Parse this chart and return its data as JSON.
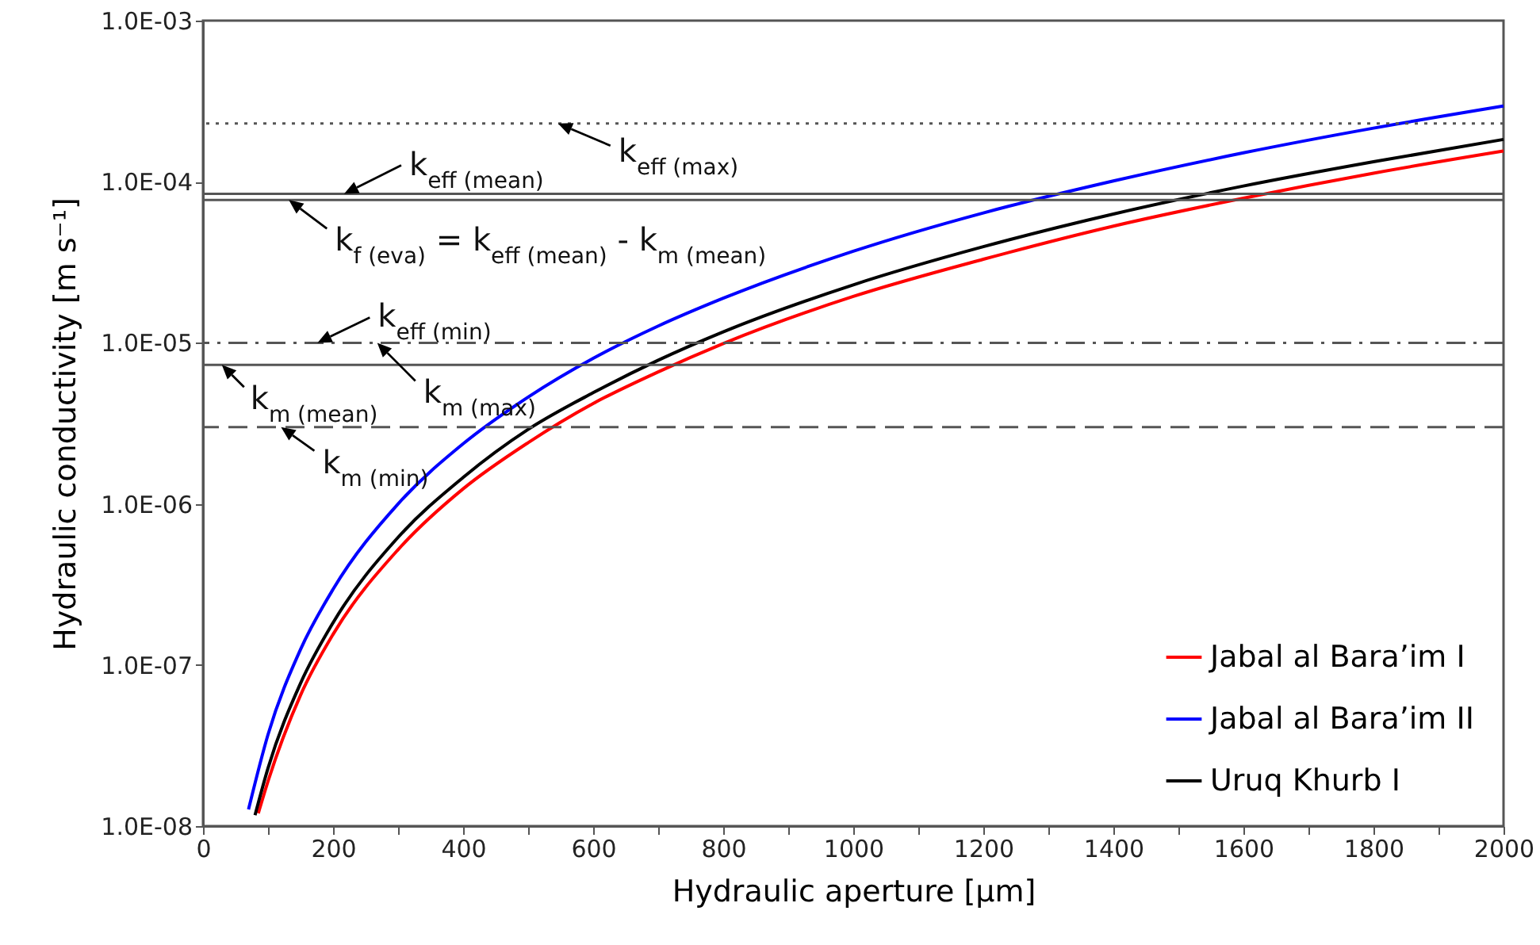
{
  "chart_data": {
    "type": "line",
    "xlabel": "Hydraulic aperture [µm]",
    "ylabel": "Hydraulic conductivity [m s⁻¹]",
    "xlim": [
      0,
      2000
    ],
    "ylim": [
      1e-08,
      0.001
    ],
    "log": "y",
    "grid": false,
    "legend": "bottom right",
    "marker": "none",
    "line_style": "solid",
    "xticks": [
      0,
      {
        "value": 100,
        "label": null
      },
      200,
      {
        "value": 300,
        "label": null
      },
      400,
      {
        "value": 500,
        "label": null
      },
      600,
      {
        "value": 700,
        "label": null
      },
      800,
      {
        "value": 900,
        "label": null
      },
      1000,
      {
        "value": 1100,
        "label": null
      },
      1200,
      {
        "value": 1300,
        "label": null
      },
      1400,
      {
        "value": 1500,
        "label": null
      },
      1600,
      {
        "value": 1700,
        "label": null
      },
      1800,
      {
        "value": 1900,
        "label": null
      },
      2000
    ],
    "yticks": [
      {
        "value": 1e-08,
        "label": "1.0E-08"
      },
      {
        "value": 1e-07,
        "label": "1.0E-07"
      },
      {
        "value": 1e-06,
        "label": "1.0E-06"
      },
      {
        "value": 1e-05,
        "label": "1.0E-05"
      },
      {
        "value": 0.0001,
        "label": "1.0E-04"
      },
      {
        "value": 0.001,
        "label": "1.0E-03"
      }
    ],
    "series": [
      {
        "name": "Jabal al Bara’im I",
        "color": "#ff0000",
        "x": [
          85,
          100,
          150,
          200,
          300,
          400,
          500,
          600,
          700,
          800,
          1000,
          1200,
          1400,
          1600,
          1800,
          2000
        ],
        "values": [
          1.2e-08,
          1.9e-08,
          6.5e-08,
          1.55e-07,
          5.2e-07,
          1.24e-06,
          2.4e-06,
          4.2e-06,
          6.6e-06,
          9.9e-06,
          1.94e-05,
          3.3e-05,
          5.3e-05,
          7.9e-05,
          0.000113,
          0.000155
        ]
      },
      {
        "name": "Jabal al Bara’im II",
        "color": "#0000ff",
        "x": [
          70,
          100,
          150,
          200,
          300,
          400,
          500,
          600,
          700,
          800,
          1000,
          1200,
          1400,
          1600,
          1800,
          2000
        ],
        "values": [
          1.27e-08,
          3.7e-08,
          1.25e-07,
          2.95e-07,
          1e-06,
          2.36e-06,
          4.6e-06,
          8e-06,
          1.27e-05,
          1.89e-05,
          3.7e-05,
          6.4e-05,
          0.000101,
          0.000151,
          0.000215,
          0.000295
        ]
      },
      {
        "name": "Uruq Khurb I",
        "color": "#000000",
        "x": [
          80,
          100,
          150,
          200,
          300,
          400,
          500,
          600,
          700,
          800,
          1000,
          1200,
          1400,
          1600,
          1800,
          2000
        ],
        "values": [
          1.17e-08,
          2.29e-08,
          7.7e-08,
          1.83e-07,
          6.2e-07,
          1.46e-06,
          2.9e-06,
          4.9e-06,
          7.8e-06,
          1.17e-05,
          2.29e-05,
          3.95e-05,
          6.3e-05,
          9.4e-05,
          0.000133,
          0.000183
        ]
      }
    ],
    "ref_lines": [
      {
        "axis": "y",
        "value": 0.00023,
        "color": "#555555",
        "line_style": "dotted"
      },
      {
        "axis": "y",
        "value": 8.4e-05,
        "color": "#555555",
        "line_style": "solid"
      },
      {
        "axis": "y",
        "value": 7.7e-05,
        "color": "#555555",
        "line_style": "solid"
      },
      {
        "axis": "y",
        "value": 1e-05,
        "color": "#555555",
        "line_style": "dashdot"
      },
      {
        "axis": "y",
        "value": 7.3e-06,
        "color": "#555555",
        "line_style": "solid"
      },
      {
        "axis": "y",
        "value": 3e-06,
        "color": "#555555",
        "line_style": "dashed"
      }
    ],
    "annotations": [
      {
        "text": "k$_{eff (max)}$",
        "x": 546,
        "y": 0.00023
      },
      {
        "text": "k$_{eff (mean)}$",
        "x": 217,
        "y": 8.4e-05
      },
      {
        "text": "k$_{f (eva)}$ = k$_{eff (mean)}$ - k$_{m (mean)}$",
        "x": 132,
        "y": 7.7e-05
      },
      {
        "text": "k$_{eff (min)}$",
        "x": 176,
        "y": 1e-05
      },
      {
        "text": "k$_{m (max)}$",
        "x": 268,
        "y": 1e-05
      },
      {
        "text": "k$_{m (mean)}$",
        "x": 29,
        "y": 7.3e-06
      },
      {
        "text": "k$_{m (min)}$",
        "x": 120,
        "y": 3e-06
      }
    ]
  }
}
